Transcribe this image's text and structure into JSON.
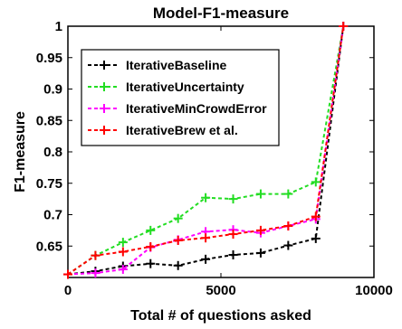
{
  "chart_data": {
    "type": "line",
    "title": "Model-F1-measure",
    "xlabel": "Total # of questions asked",
    "ylabel": "F1-measure",
    "xlim": [
      0,
      10000
    ],
    "ylim": [
      0.6,
      1.0
    ],
    "xticks": [
      0,
      5000,
      10000
    ],
    "yticks": [
      0.65,
      0.7,
      0.75,
      0.8,
      0.85,
      0.9,
      0.95,
      1
    ],
    "ytick_labels": [
      "0.65",
      "0.7",
      "0.75",
      "0.8",
      "0.85",
      "0.9",
      "0.95",
      "1"
    ],
    "xtick_labels": [
      "0",
      "5000",
      "10000"
    ],
    "legend_position": "top-left",
    "grid": false,
    "series": [
      {
        "name": "IterativeBaseline",
        "color": "#000000",
        "marker": "plus",
        "line": "dashed",
        "x": [
          0,
          900,
          1800,
          2700,
          3600,
          4500,
          5400,
          6300,
          7200,
          8100,
          9000
        ],
        "y": [
          0.605,
          0.61,
          0.618,
          0.622,
          0.619,
          0.629,
          0.636,
          0.639,
          0.651,
          0.662,
          1.0
        ]
      },
      {
        "name": "IterativeUncertainty",
        "color": "#22dd22",
        "marker": "plus",
        "line": "dashed",
        "x": [
          0,
          900,
          1800,
          2700,
          3600,
          4500,
          5400,
          6300,
          7200,
          8100,
          9000
        ],
        "y": [
          0.605,
          0.635,
          0.656,
          0.675,
          0.694,
          0.727,
          0.725,
          0.733,
          0.733,
          0.752,
          1.0
        ]
      },
      {
        "name": "IterativeMinCrowdError",
        "color": "#ff00ff",
        "marker": "plus",
        "line": "dashed",
        "x": [
          0,
          900,
          1800,
          2700,
          3600,
          4500,
          5400,
          6300,
          7200,
          8100,
          9000
        ],
        "y": [
          0.605,
          0.607,
          0.613,
          0.648,
          0.66,
          0.673,
          0.676,
          0.671,
          0.682,
          0.693,
          1.0
        ]
      },
      {
        "name": "IterativeBrew et al.",
        "color": "#ff0000",
        "marker": "plus",
        "line": "dashed",
        "x": [
          0,
          900,
          1800,
          2700,
          3600,
          4500,
          5400,
          6300,
          7200,
          8100,
          9000
        ],
        "y": [
          0.605,
          0.635,
          0.641,
          0.649,
          0.659,
          0.663,
          0.669,
          0.675,
          0.682,
          0.697,
          1.0
        ]
      }
    ]
  }
}
